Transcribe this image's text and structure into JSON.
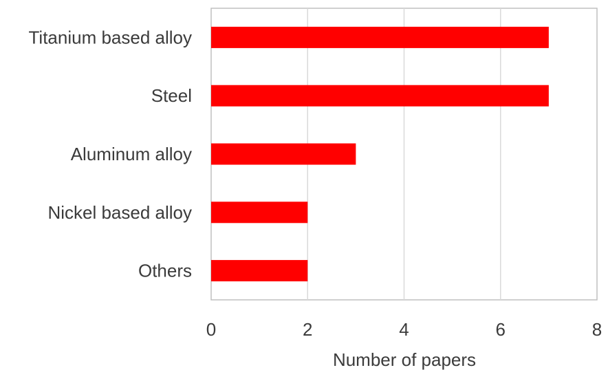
{
  "chart_data": {
    "type": "bar",
    "orientation": "horizontal",
    "categories": [
      "Titanium based alloy",
      "Steel",
      "Aluminum alloy",
      "Nickel based alloy",
      "Others"
    ],
    "values": [
      7,
      7,
      3,
      2,
      2
    ],
    "xlabel": "Number of papers",
    "ylabel": "",
    "title": "",
    "xlim": [
      0,
      8
    ],
    "xticks": [
      "0",
      "2",
      "4",
      "6",
      "8"
    ],
    "grid": "vertical",
    "legend": "none",
    "bar_color": "#ff0000",
    "grid_color": "#d9d9d9",
    "frame_color": "#bfbfbf"
  }
}
